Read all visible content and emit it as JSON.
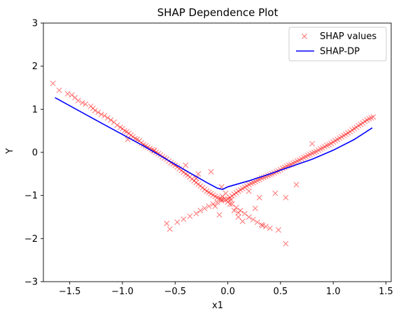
{
  "chart_data": {
    "type": "scatter",
    "title": "SHAP Dependence Plot",
    "xlabel": "x1",
    "ylabel": "Y",
    "xlim": [
      -1.75,
      1.55
    ],
    "ylim": [
      -3,
      3
    ],
    "xticks": [
      -1.5,
      -1.0,
      -0.5,
      0.0,
      0.5,
      1.0,
      1.5
    ],
    "xtick_labels": [
      "−1.5",
      "−1.0",
      "−0.5",
      "0.0",
      "0.5",
      "1.0",
      "1.5"
    ],
    "yticks": [
      -3,
      -2,
      -1,
      0,
      1,
      2,
      3
    ],
    "ytick_labels": [
      "−3",
      "−2",
      "−1",
      "0",
      "1",
      "2",
      "3"
    ],
    "grid": false,
    "legend": "top-right",
    "series": [
      {
        "name": "SHAP values",
        "kind": "scatter",
        "marker": "x",
        "color": "#ff0000",
        "x": [
          -1.66,
          -1.6,
          -1.52,
          -1.48,
          -1.45,
          -1.42,
          -1.38,
          -1.35,
          -1.3,
          -1.28,
          -1.26,
          -1.23,
          -1.2,
          -1.17,
          -1.14,
          -1.11,
          -1.08,
          -1.05,
          -1.02,
          -1.0,
          -0.98,
          -0.96,
          -0.94,
          -0.92,
          -0.9,
          -0.88,
          -0.86,
          -0.84,
          -0.82,
          -0.8,
          -0.78,
          -0.76,
          -0.74,
          -0.72,
          -0.7,
          -0.68,
          -0.66,
          -0.64,
          -0.62,
          -0.6,
          -0.58,
          -0.56,
          -0.54,
          -0.52,
          -0.5,
          -0.48,
          -0.46,
          -0.44,
          -0.42,
          -0.4,
          -0.38,
          -0.36,
          -0.34,
          -0.32,
          -0.3,
          -0.28,
          -0.26,
          -0.24,
          -0.22,
          -0.2,
          -0.18,
          -0.16,
          -0.14,
          -0.12,
          -0.1,
          -0.08,
          -0.06,
          -0.04,
          -0.02,
          0.0,
          0.02,
          0.04,
          0.06,
          0.08,
          0.1,
          0.12,
          0.14,
          0.16,
          0.18,
          0.2,
          0.22,
          0.24,
          0.26,
          0.28,
          0.3,
          0.32,
          0.34,
          0.36,
          0.38,
          0.4,
          0.42,
          0.44,
          0.46,
          0.48,
          0.5,
          0.52,
          0.54,
          0.56,
          0.58,
          0.6,
          0.62,
          0.64,
          0.66,
          0.68,
          0.7,
          0.72,
          0.74,
          0.76,
          0.78,
          0.8,
          0.82,
          0.84,
          0.86,
          0.88,
          0.9,
          0.92,
          0.94,
          0.96,
          0.98,
          1.0,
          1.02,
          1.04,
          1.06,
          1.08,
          1.1,
          1.12,
          1.14,
          1.16,
          1.18,
          1.2,
          1.22,
          1.24,
          1.26,
          1.28,
          1.3,
          1.32,
          1.34,
          1.36,
          1.38,
          -0.58,
          -0.55,
          -0.48,
          -0.42,
          -0.36,
          -0.3,
          -0.26,
          -0.22,
          -0.18,
          -0.14,
          -0.1,
          -0.06,
          0.04,
          0.08,
          0.12,
          0.16,
          0.2,
          0.24,
          0.28,
          0.32,
          0.36,
          0.4,
          0.48,
          0.55,
          0.65,
          -0.4,
          -0.28,
          -0.16,
          -0.06,
          0.02,
          0.06,
          0.1,
          0.14,
          -0.02,
          -0.05,
          0.0,
          0.03,
          0.26,
          0.33,
          -0.12,
          -0.08,
          0.1,
          0.3,
          0.45,
          -0.95,
          -0.7,
          -0.3,
          0.2,
          0.8
        ],
        "y": [
          1.6,
          1.44,
          1.36,
          1.33,
          1.27,
          1.2,
          1.15,
          1.12,
          1.07,
          1.02,
          0.97,
          0.93,
          0.88,
          0.85,
          0.8,
          0.75,
          0.7,
          0.63,
          0.58,
          0.55,
          0.5,
          0.48,
          0.44,
          0.4,
          0.36,
          0.32,
          0.3,
          0.27,
          0.22,
          0.18,
          0.15,
          0.12,
          0.09,
          0.06,
          0.03,
          0.0,
          -0.03,
          -0.06,
          -0.1,
          -0.13,
          -0.16,
          -0.2,
          -0.24,
          -0.27,
          -0.3,
          -0.34,
          -0.38,
          -0.42,
          -0.46,
          -0.5,
          -0.53,
          -0.57,
          -0.62,
          -0.66,
          -0.7,
          -0.74,
          -0.78,
          -0.82,
          -0.86,
          -0.9,
          -0.93,
          -0.96,
          -0.99,
          -1.02,
          -1.05,
          -1.07,
          -1.09,
          -1.1,
          -1.1,
          -1.08,
          -1.05,
          -1.01,
          -0.97,
          -0.94,
          -0.9,
          -0.87,
          -0.84,
          -0.81,
          -0.78,
          -0.75,
          -0.72,
          -0.7,
          -0.68,
          -0.65,
          -0.63,
          -0.6,
          -0.58,
          -0.56,
          -0.54,
          -0.52,
          -0.5,
          -0.48,
          -0.45,
          -0.43,
          -0.4,
          -0.37,
          -0.35,
          -0.32,
          -0.3,
          -0.28,
          -0.25,
          -0.23,
          -0.2,
          -0.18,
          -0.15,
          -0.12,
          -0.1,
          -0.07,
          -0.05,
          -0.02,
          0.0,
          0.02,
          0.05,
          0.08,
          0.1,
          0.13,
          0.16,
          0.18,
          0.21,
          0.24,
          0.27,
          0.3,
          0.33,
          0.36,
          0.39,
          0.42,
          0.45,
          0.48,
          0.52,
          0.55,
          0.58,
          0.62,
          0.65,
          0.68,
          0.72,
          0.75,
          0.78,
          0.8,
          0.82,
          -1.65,
          -1.78,
          -1.62,
          -1.55,
          -1.48,
          -1.42,
          -1.35,
          -1.3,
          -1.25,
          -1.2,
          -1.16,
          -1.12,
          -1.2,
          -1.28,
          -1.35,
          -1.42,
          -1.5,
          -1.56,
          -1.62,
          -1.68,
          -1.72,
          -1.76,
          -1.8,
          -1.05,
          -0.75,
          -0.3,
          -0.5,
          -0.45,
          -0.8,
          -1.2,
          -1.35,
          -1.5,
          -1.6,
          -0.95,
          -1.02,
          -1.15,
          -1.1,
          -1.3,
          -1.7,
          -1.25,
          -1.45,
          -1.4,
          -1.05,
          -0.95,
          0.3,
          0.05,
          -0.6,
          -0.9,
          0.2
        ],
        "extra": [
          {
            "x": 0.55,
            "y": -2.12
          }
        ]
      },
      {
        "name": "SHAP-DP",
        "kind": "line",
        "color": "#0000ff",
        "x": [
          -1.64,
          -1.2,
          -0.8,
          -0.4,
          -0.2,
          -0.1,
          -0.05,
          0.0,
          0.2,
          0.4,
          0.6,
          0.8,
          1.0,
          1.2,
          1.37
        ],
        "y": [
          1.27,
          0.68,
          0.15,
          -0.42,
          -0.7,
          -0.83,
          -0.86,
          -0.8,
          -0.66,
          -0.5,
          -0.33,
          -0.16,
          0.05,
          0.3,
          0.57
        ]
      }
    ]
  }
}
